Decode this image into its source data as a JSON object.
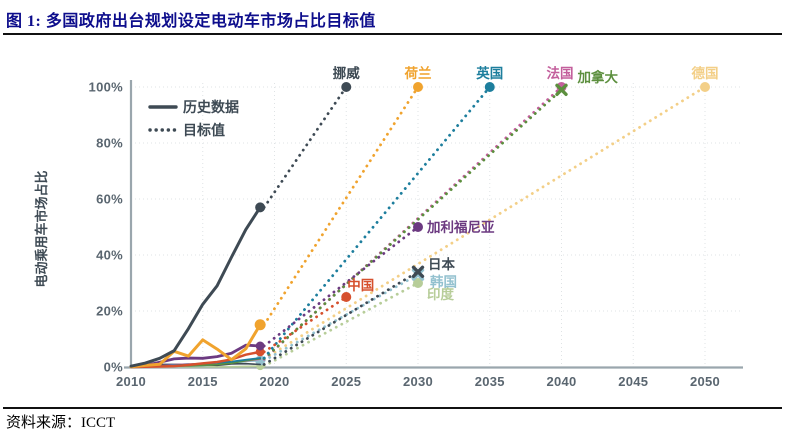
{
  "header": {
    "title": "图 1: 多国政府出台规划设定电动车市场占比目标值"
  },
  "footer": {
    "source": "资料来源：ICCT"
  },
  "chart_data": {
    "type": "line",
    "title": "多国政府出台规划设定电动车市场占比目标值",
    "xlabel": "",
    "ylabel": "电动乘用车市场占比",
    "xlim": [
      2010,
      2052
    ],
    "ylim": [
      0,
      100
    ],
    "grid": true,
    "x_ticks": [
      2010,
      2015,
      2020,
      2025,
      2030,
      2035,
      2040,
      2045,
      2050
    ],
    "y_ticks": [
      0,
      20,
      40,
      60,
      80,
      100
    ],
    "y_tick_suffix": "%",
    "legend_position": "top-left",
    "legend": [
      {
        "label": "历史数据",
        "style": "solid"
      },
      {
        "label": "目标值",
        "style": "dotted"
      }
    ],
    "history_years": [
      2010,
      2011,
      2012,
      2013,
      2014,
      2015,
      2016,
      2017,
      2018,
      2019
    ],
    "series": [
      {
        "name": "德国",
        "color": "#f3cf87",
        "marker": "circle",
        "line_width": 1.8,
        "hist_dot": 0,
        "history": [
          0.1,
          0.1,
          0.2,
          0.4,
          0.6,
          0.7,
          0.8,
          1.3,
          2.0,
          2.9
        ],
        "target": {
          "year": 2050,
          "value": 100
        },
        "label": {
          "dx": 0,
          "dy": -9,
          "anchor": "middle"
        }
      },
      {
        "name": "印度",
        "color": "#b7cd99",
        "marker": "circle",
        "line_width": 1.8,
        "hist_dot": 4,
        "history": [
          0,
          0,
          0,
          0.1,
          0.1,
          0.1,
          0.1,
          0.1,
          0.2,
          0.3
        ],
        "target": {
          "year": 2030,
          "value": 30
        },
        "label": {
          "dx": 9,
          "dy": 16,
          "anchor": "start"
        }
      },
      {
        "name": "韩国",
        "color": "#93c1cf",
        "marker": "x",
        "line_width": 1.8,
        "hist_dot": 5,
        "history": [
          0,
          0.1,
          0.1,
          0.2,
          0.3,
          0.4,
          0.8,
          1.3,
          2.0,
          2.3
        ],
        "target": {
          "year": 2030,
          "value": 33
        },
        "label": {
          "dx": 12,
          "dy": 12,
          "anchor": "start"
        }
      },
      {
        "name": "日本",
        "color": "#3e4a54",
        "marker": "x",
        "line_width": 1.6,
        "hist_dot": 0,
        "history": [
          0.1,
          0.4,
          0.9,
          0.9,
          1.0,
          0.8,
          0.6,
          1.1,
          1.2,
          0.9
        ],
        "target": {
          "year": 2030,
          "value": 34
        },
        "label": {
          "dx": 10,
          "dy": -3,
          "anchor": "start"
        }
      },
      {
        "name": "法国",
        "color": "#c35f9c",
        "marker": "circle",
        "line_width": 1.8,
        "hist_dot": 0,
        "history": [
          0.1,
          0.1,
          0.4,
          0.8,
          1.0,
          1.2,
          1.5,
          1.8,
          2.2,
          2.8
        ],
        "target": {
          "year": 2040,
          "value": 100
        },
        "label": {
          "dx": 12,
          "dy": -9,
          "anchor": "end"
        }
      },
      {
        "name": "加拿大",
        "color": "#5c8f3e",
        "marker": "x",
        "line_width": 1.8,
        "hist_dot": 0,
        "history": [
          0.1,
          0.1,
          0.2,
          0.3,
          0.4,
          0.6,
          0.9,
          1.4,
          2.3,
          3.0
        ],
        "target": {
          "year": 2040,
          "value": 99
        },
        "label": {
          "dx": 16,
          "dy": -8,
          "anchor": "start"
        }
      },
      {
        "name": "英国",
        "color": "#1d7e9d",
        "marker": "circle",
        "line_width": 1.8,
        "hist_dot": 0,
        "history": [
          0.1,
          0.1,
          0.3,
          0.6,
          0.9,
          1.2,
          1.5,
          1.9,
          2.6,
          3.2
        ],
        "target": {
          "year": 2035,
          "value": 100
        },
        "label": {
          "dx": 0,
          "dy": -9,
          "anchor": "middle"
        }
      },
      {
        "name": "中国",
        "color": "#d6502d",
        "marker": "circle",
        "line_width": 2.5,
        "hist_dot": 4.5,
        "history": [
          0,
          0.1,
          0.2,
          0.3,
          0.7,
          1.3,
          1.8,
          2.7,
          4.4,
          5.4
        ],
        "target": {
          "year": 2025,
          "value": 25
        },
        "label": {
          "dx": 1,
          "dy": -7,
          "anchor": "start"
        }
      },
      {
        "name": "加利福尼亚",
        "color": "#6c3a81",
        "marker": "circle",
        "line_width": 2.8,
        "hist_dot": 4.5,
        "history": [
          0.1,
          0.6,
          1.7,
          2.9,
          3.2,
          3.1,
          3.7,
          4.9,
          7.8,
          7.5
        ],
        "target": {
          "year": 2030,
          "value": 50
        },
        "label": {
          "dx": 9,
          "dy": 5,
          "anchor": "start"
        }
      },
      {
        "name": "荷兰",
        "color": "#f0a32e",
        "marker": "circle",
        "line_width": 3,
        "hist_dot": 5.5,
        "history": [
          0.1,
          0.6,
          1.0,
          5.6,
          3.9,
          9.7,
          6.4,
          2.6,
          6.5,
          15.1
        ],
        "target": {
          "year": 2030,
          "value": 100
        },
        "label": {
          "dx": 0,
          "dy": -9,
          "anchor": "middle"
        }
      },
      {
        "name": "挪威",
        "color": "#3e4a54",
        "marker": "circle",
        "line_width": 3,
        "hist_dot": 5,
        "history": [
          0.3,
          1.4,
          3.1,
          5.8,
          13.7,
          22.4,
          29,
          39.2,
          49.1,
          57
        ],
        "target": {
          "year": 2025,
          "value": 100
        },
        "label": {
          "dx": 0,
          "dy": -9,
          "anchor": "middle"
        }
      }
    ],
    "colors": {
      "axis": "#9aa6ad",
      "grid": "#dfe3e5",
      "tick_text": "#5a6670",
      "legend_text": "#3e4a54"
    }
  }
}
